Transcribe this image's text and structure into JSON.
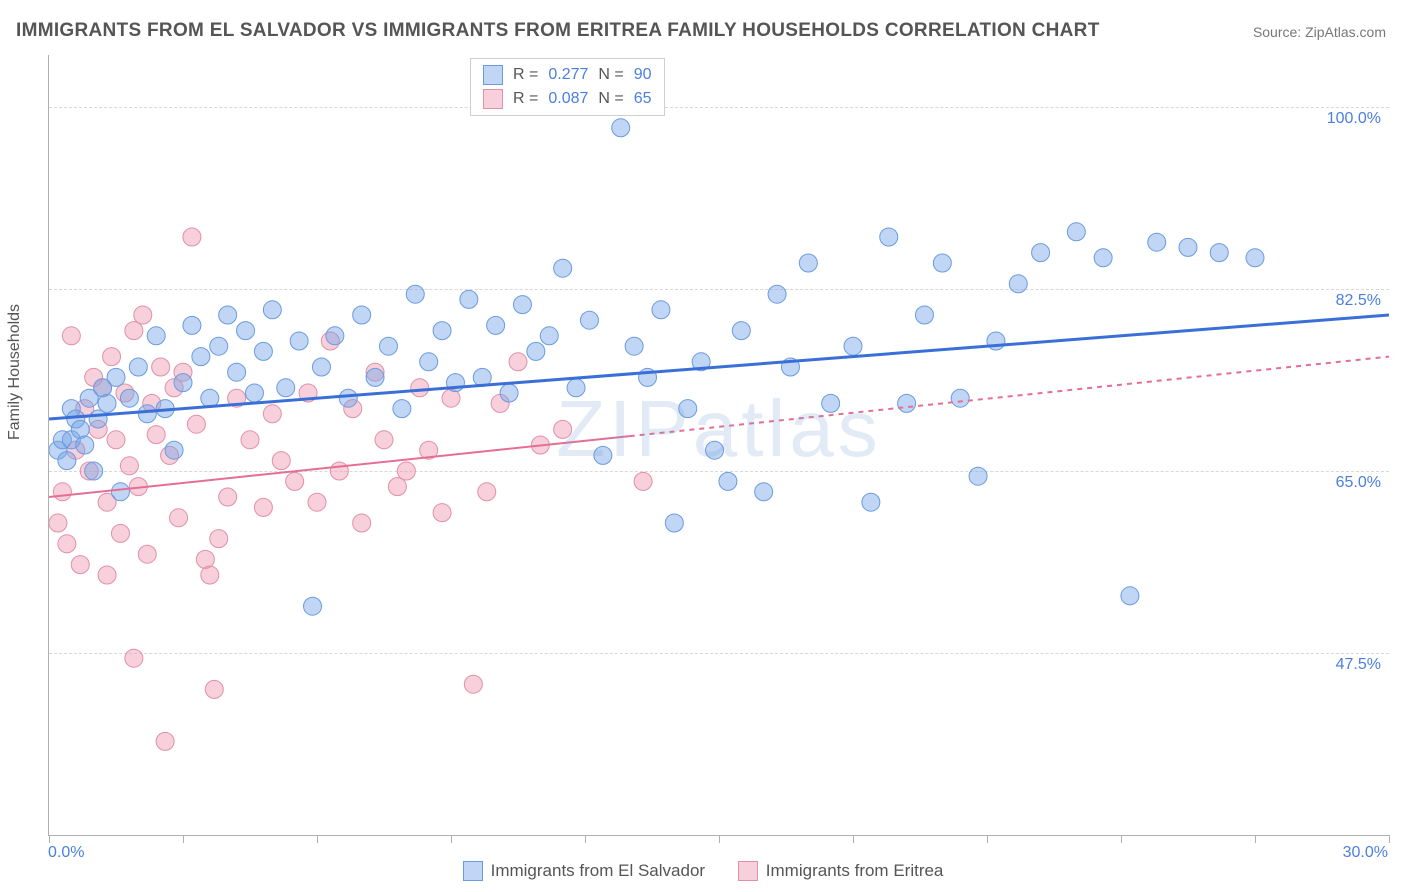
{
  "title": "IMMIGRANTS FROM EL SALVADOR VS IMMIGRANTS FROM ERITREA FAMILY HOUSEHOLDS CORRELATION CHART",
  "source": "Source: ZipAtlas.com",
  "watermark": "ZIPatlas",
  "y_axis_title": "Family Households",
  "x_axis": {
    "min": 0.0,
    "max": 30.0,
    "labels": [
      {
        "value": 0.0,
        "text": "0.0%"
      },
      {
        "value": 30.0,
        "text": "30.0%"
      }
    ],
    "ticks": [
      0,
      3,
      6,
      9,
      12,
      15,
      18,
      21,
      24,
      27,
      30
    ]
  },
  "y_axis": {
    "min": 30.0,
    "max": 105.0,
    "grid_lines": [
      {
        "value": 47.5,
        "label": "47.5%"
      },
      {
        "value": 65.0,
        "label": "65.0%"
      },
      {
        "value": 82.5,
        "label": "82.5%"
      },
      {
        "value": 100.0,
        "label": "100.0%"
      }
    ]
  },
  "series": [
    {
      "name": "Immigrants from El Salvador",
      "color_fill": "rgba(115,165,230,0.45)",
      "color_stroke": "#6a9be0",
      "trend_color": "#3a6fd8",
      "trend_width": 3,
      "trend_dash": "none",
      "R": "0.277",
      "N": "90",
      "trend": {
        "y_at_xmin": 70.0,
        "y_at_xmax": 80.0
      },
      "points": [
        [
          0.2,
          67
        ],
        [
          0.3,
          68
        ],
        [
          0.4,
          66
        ],
        [
          0.5,
          71
        ],
        [
          0.5,
          68
        ],
        [
          0.6,
          70
        ],
        [
          0.7,
          69
        ],
        [
          0.8,
          67.5
        ],
        [
          0.9,
          72
        ],
        [
          1.0,
          65
        ],
        [
          1.1,
          70
        ],
        [
          1.2,
          73
        ],
        [
          1.3,
          71.5
        ],
        [
          1.5,
          74
        ],
        [
          1.6,
          63
        ],
        [
          1.8,
          72
        ],
        [
          2.0,
          75
        ],
        [
          2.2,
          70.5
        ],
        [
          2.4,
          78
        ],
        [
          2.6,
          71
        ],
        [
          2.8,
          67
        ],
        [
          3.0,
          73.5
        ],
        [
          3.2,
          79
        ],
        [
          3.4,
          76
        ],
        [
          3.6,
          72
        ],
        [
          3.8,
          77
        ],
        [
          4.0,
          80
        ],
        [
          4.2,
          74.5
        ],
        [
          4.4,
          78.5
        ],
        [
          4.6,
          72.5
        ],
        [
          4.8,
          76.5
        ],
        [
          5.0,
          80.5
        ],
        [
          5.3,
          73
        ],
        [
          5.6,
          77.5
        ],
        [
          5.9,
          52
        ],
        [
          6.1,
          75
        ],
        [
          6.4,
          78
        ],
        [
          6.7,
          72
        ],
        [
          7.0,
          80
        ],
        [
          7.3,
          74
        ],
        [
          7.6,
          77
        ],
        [
          7.9,
          71
        ],
        [
          8.2,
          82
        ],
        [
          8.5,
          75.5
        ],
        [
          8.8,
          78.5
        ],
        [
          9.1,
          73.5
        ],
        [
          9.4,
          81.5
        ],
        [
          9.7,
          74
        ],
        [
          10.0,
          79
        ],
        [
          10.3,
          72.5
        ],
        [
          10.6,
          81
        ],
        [
          10.9,
          76.5
        ],
        [
          11.2,
          78
        ],
        [
          11.5,
          84.5
        ],
        [
          11.8,
          73
        ],
        [
          12.1,
          79.5
        ],
        [
          12.4,
          66.5
        ],
        [
          12.8,
          98
        ],
        [
          13.1,
          77
        ],
        [
          13.4,
          74
        ],
        [
          13.7,
          80.5
        ],
        [
          14.0,
          60
        ],
        [
          14.3,
          71
        ],
        [
          14.6,
          75.5
        ],
        [
          14.9,
          67
        ],
        [
          15.2,
          64
        ],
        [
          15.5,
          78.5
        ],
        [
          16.0,
          63
        ],
        [
          16.3,
          82
        ],
        [
          16.6,
          75
        ],
        [
          17.0,
          85
        ],
        [
          17.5,
          71.5
        ],
        [
          18.0,
          77
        ],
        [
          18.4,
          62
        ],
        [
          18.8,
          87.5
        ],
        [
          19.2,
          71.5
        ],
        [
          19.6,
          80
        ],
        [
          20.0,
          85
        ],
        [
          20.4,
          72
        ],
        [
          20.8,
          64.5
        ],
        [
          21.2,
          77.5
        ],
        [
          21.7,
          83
        ],
        [
          22.2,
          86
        ],
        [
          23.0,
          88
        ],
        [
          23.6,
          85.5
        ],
        [
          24.2,
          53
        ],
        [
          24.8,
          87
        ],
        [
          25.5,
          86.5
        ],
        [
          26.2,
          86
        ],
        [
          27.0,
          85.5
        ]
      ]
    },
    {
      "name": "Immigrants from Eritrea",
      "color_fill": "rgba(240,150,175,0.45)",
      "color_stroke": "#e090a8",
      "trend_color": "#e56f94",
      "trend_width": 2,
      "trend_dash": "5,5",
      "trend_solid_until_x": 13.0,
      "R": "0.087",
      "N": "65",
      "trend": {
        "y_at_xmin": 62.5,
        "y_at_xmax": 76.0
      },
      "points": [
        [
          0.2,
          60
        ],
        [
          0.3,
          63
        ],
        [
          0.4,
          58
        ],
        [
          0.5,
          78
        ],
        [
          0.6,
          67
        ],
        [
          0.7,
          56
        ],
        [
          0.8,
          71
        ],
        [
          0.9,
          65
        ],
        [
          1.0,
          74
        ],
        [
          1.1,
          69
        ],
        [
          1.2,
          73
        ],
        [
          1.3,
          62
        ],
        [
          1.4,
          76
        ],
        [
          1.5,
          68
        ],
        [
          1.6,
          59
        ],
        [
          1.7,
          72.5
        ],
        [
          1.8,
          65.5
        ],
        [
          1.9,
          78.5
        ],
        [
          2.0,
          63.5
        ],
        [
          2.1,
          80
        ],
        [
          2.2,
          57
        ],
        [
          2.3,
          71.5
        ],
        [
          2.4,
          68.5
        ],
        [
          2.5,
          75
        ],
        [
          2.6,
          39
        ],
        [
          2.7,
          66.5
        ],
        [
          2.8,
          73
        ],
        [
          2.9,
          60.5
        ],
        [
          3.0,
          74.5
        ],
        [
          3.2,
          87.5
        ],
        [
          3.3,
          69.5
        ],
        [
          3.5,
          56.5
        ],
        [
          3.6,
          55
        ],
        [
          3.7,
          44
        ],
        [
          3.8,
          58.5
        ],
        [
          4.0,
          62.5
        ],
        [
          4.2,
          72
        ],
        [
          1.9,
          47
        ],
        [
          4.5,
          68
        ],
        [
          4.8,
          61.5
        ],
        [
          5.0,
          70.5
        ],
        [
          5.2,
          66
        ],
        [
          5.5,
          64
        ],
        [
          5.8,
          72.5
        ],
        [
          6.0,
          62
        ],
        [
          6.3,
          77.5
        ],
        [
          6.5,
          65
        ],
        [
          6.8,
          71
        ],
        [
          7.0,
          60
        ],
        [
          7.3,
          74.5
        ],
        [
          7.5,
          68
        ],
        [
          7.8,
          63.5
        ],
        [
          8.0,
          65
        ],
        [
          8.3,
          73
        ],
        [
          8.5,
          67
        ],
        [
          8.8,
          61
        ],
        [
          9.0,
          72
        ],
        [
          1.3,
          55
        ],
        [
          9.5,
          44.5
        ],
        [
          9.8,
          63
        ],
        [
          10.1,
          71.5
        ],
        [
          10.5,
          75.5
        ],
        [
          11.0,
          67.5
        ],
        [
          11.5,
          69
        ],
        [
          13.3,
          64
        ]
      ]
    }
  ],
  "legend_top_labels": {
    "R": "R =",
    "N": "N ="
  },
  "marker_radius": 9,
  "grid_color": "#d8d8d8",
  "axis_color": "#b0b0b0",
  "label_color_axis": "#4a7fe0",
  "title_color": "#555555"
}
